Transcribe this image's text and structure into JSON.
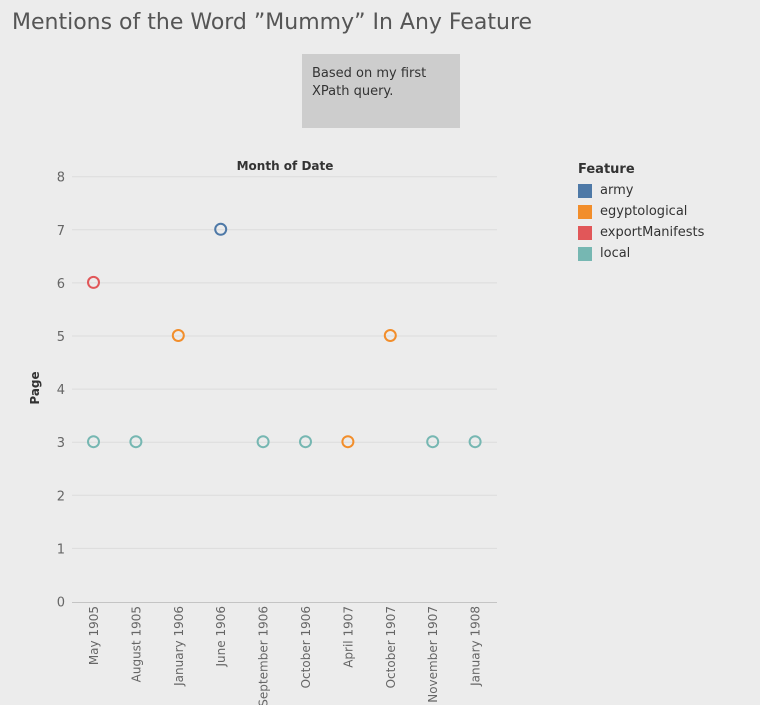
{
  "title": "Mentions of the Word ”Mummy” In Any Feature",
  "annotation": {
    "line1": "Based on my first",
    "line2": "XPath query."
  },
  "legend": {
    "title": "Feature",
    "items": [
      {
        "label": "army",
        "color": "#4e79a7"
      },
      {
        "label": "egyptological",
        "color": "#f28e2b"
      },
      {
        "label": "exportManifests",
        "color": "#e15759"
      },
      {
        "label": "local",
        "color": "#76b7b2"
      }
    ]
  },
  "chart_data": {
    "type": "scatter",
    "title": "Month of Date",
    "xlabel": "Month of Date",
    "ylabel": "Page",
    "categories": [
      "May 1905",
      "August 1905",
      "January 1906",
      "June 1906",
      "September 1906",
      "October 1906",
      "April 1907",
      "October 1907",
      "November 1907",
      "January 1908"
    ],
    "ylim": [
      0,
      8
    ],
    "yticks": [
      0,
      1,
      2,
      3,
      4,
      5,
      6,
      7,
      8
    ],
    "grid": true,
    "legend_position": "right",
    "series": [
      {
        "name": "army",
        "color": "#4e79a7",
        "points": [
          {
            "x": "June 1906",
            "y": 7
          }
        ]
      },
      {
        "name": "egyptological",
        "color": "#f28e2b",
        "points": [
          {
            "x": "January 1906",
            "y": 5
          },
          {
            "x": "April 1907",
            "y": 3
          },
          {
            "x": "October 1907",
            "y": 5
          }
        ]
      },
      {
        "name": "exportManifests",
        "color": "#e15759",
        "points": [
          {
            "x": "May 1905",
            "y": 6
          }
        ]
      },
      {
        "name": "local",
        "color": "#76b7b2",
        "points": [
          {
            "x": "May 1905",
            "y": 3
          },
          {
            "x": "August 1905",
            "y": 3
          },
          {
            "x": "September 1906",
            "y": 3
          },
          {
            "x": "October 1906",
            "y": 3
          },
          {
            "x": "November 1907",
            "y": 3
          },
          {
            "x": "January 1908",
            "y": 3
          }
        ]
      }
    ]
  }
}
